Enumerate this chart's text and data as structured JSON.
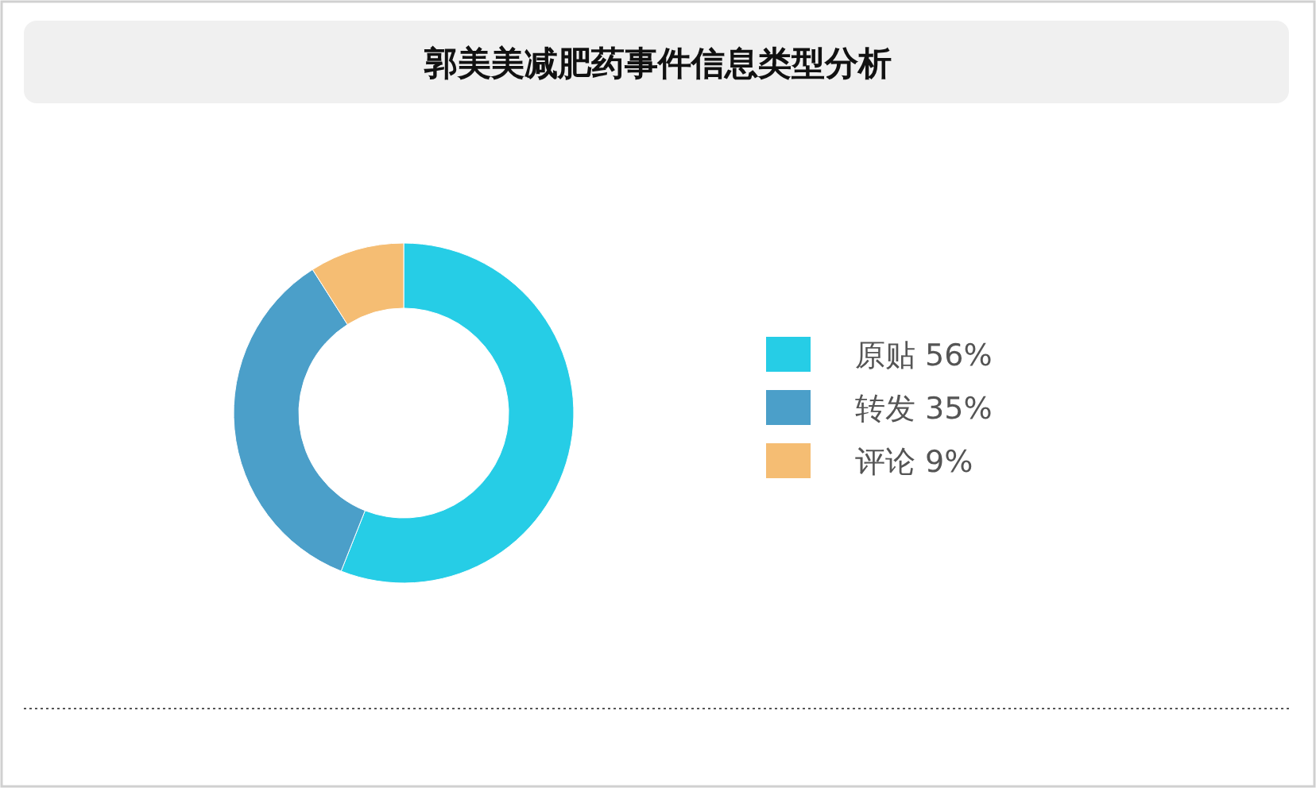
{
  "chart_data": {
    "type": "donut",
    "title": "郭美美减肥药事件信息类型分析",
    "categories": [
      "原贴",
      "转发",
      "评论"
    ],
    "values": [
      56,
      35,
      9
    ],
    "value_labels": [
      "56%",
      "35%",
      "9%"
    ],
    "colors": [
      "#26cde6",
      "#4b9fc9",
      "#f5bd73"
    ],
    "legend": "right"
  }
}
